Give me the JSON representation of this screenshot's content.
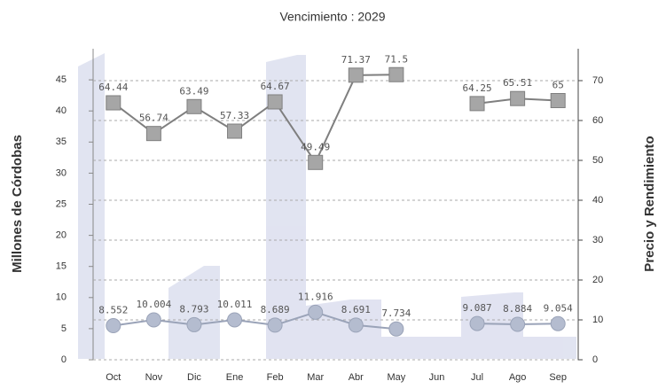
{
  "chart_data": {
    "type": "line",
    "title": "Vencimiento : 2029",
    "y_label": "Millones de Córdobas",
    "y2_label": "Precio y Rendimiento",
    "categories": [
      "Oct",
      "Nov",
      "Dic",
      "Ene",
      "Feb",
      "Mar",
      "Abr",
      "May",
      "Jun",
      "Jul",
      "Ago",
      "Sep"
    ],
    "ylim": [
      0,
      50
    ],
    "yticks": [
      0,
      5,
      10,
      15,
      20,
      25,
      30,
      35,
      40,
      45
    ],
    "y2lim": [
      0,
      78
    ],
    "y2ticks": [
      0,
      10,
      20,
      30,
      40,
      50,
      60,
      70
    ],
    "grid": true,
    "series": [
      {
        "color": "#7f7f7f",
        "marker": "square",
        "axis": "y2",
        "values": [
          64.44,
          56.74,
          63.49,
          57.33,
          64.67,
          49.49,
          71.37,
          71.5,
          null,
          64.25,
          65.51,
          65
        ]
      },
      {
        "color": "#9aa3b8",
        "marker": "circle",
        "axis": "y2",
        "values": [
          8.552,
          10.004,
          8.793,
          10.011,
          8.689,
          11.916,
          8.691,
          7.734,
          null,
          9.087,
          8.884,
          9.054
        ]
      }
    ]
  }
}
